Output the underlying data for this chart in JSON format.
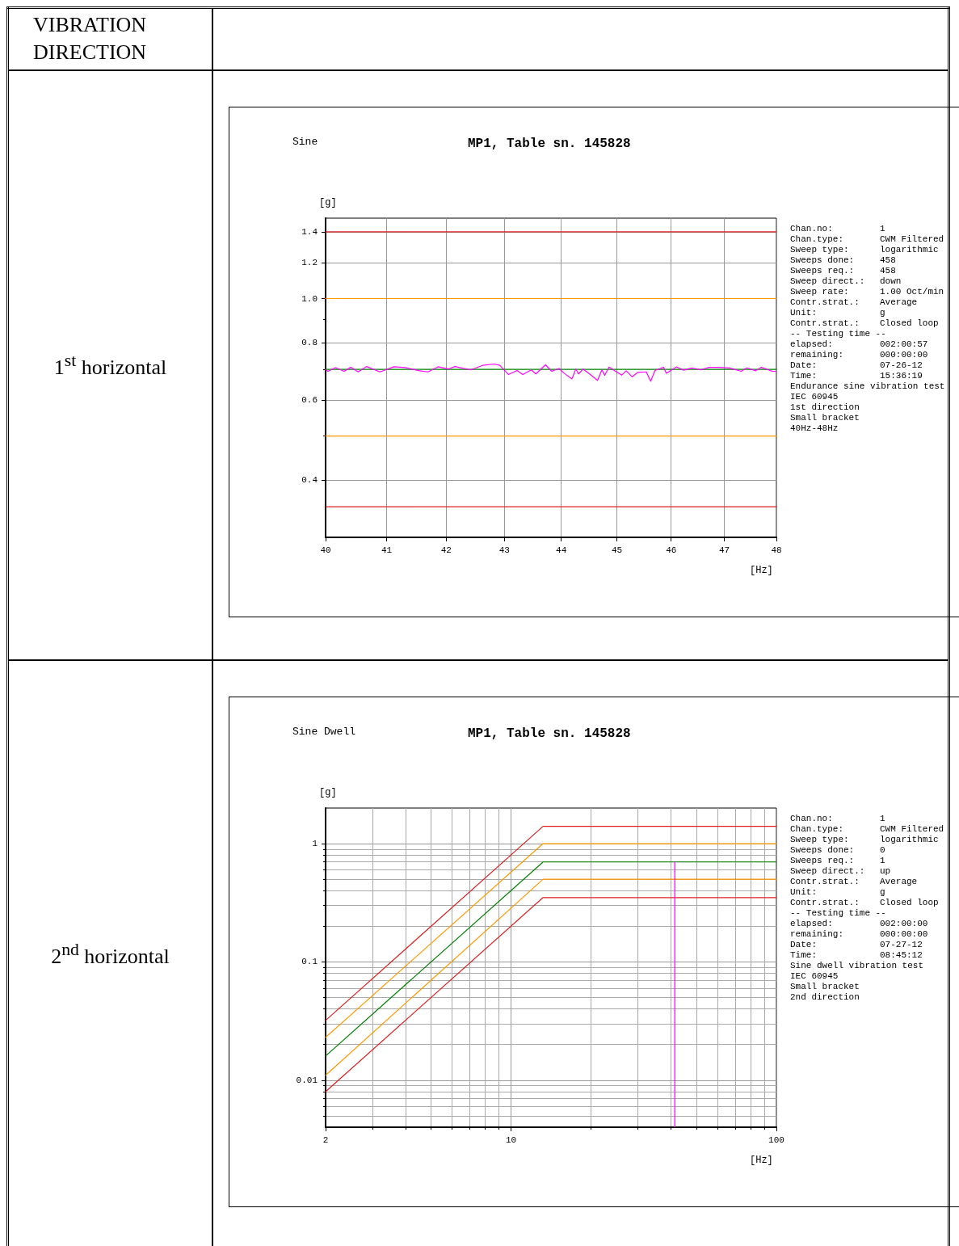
{
  "chart_data": [
    {
      "type": "line",
      "title": "MP1, Table sn. 145828",
      "subtitle": "Sine",
      "xlabel": "[Hz]",
      "ylabel": "[g]",
      "log": "xy",
      "grid": true,
      "xlim": [
        40,
        48
      ],
      "xticks": [
        40,
        41,
        42,
        43,
        44,
        45,
        46,
        47,
        48
      ],
      "ylim": [
        0.3,
        1.5
      ],
      "yticks": [
        0.4,
        0.6,
        0.8,
        {
          "value": 1,
          "label": "1.0"
        },
        1.2,
        1.4
      ],
      "annotations": [
        "1$^{st}$ horizontal",
        "VIBRATION DIRECTION",
        "Chan.no: 1",
        "Chan.type: CWM Filtered",
        "Sweep type: logarithmic",
        "Sweeps done: 458",
        "Sweeps req.: 458",
        "Sweep direct.: down",
        "Sweep rate: 1.00 Oct/min",
        "Contr.strat.: Average",
        "Unit: g",
        "Contr.strat.: Closed loop",
        "-- Testing time --",
        "elapsed: 002:00:57",
        "remaining: 000:00:00",
        "Date: 07-26-12",
        "Time: 15:36:19",
        "Endurance sine vibration test",
        "IEC 60945",
        "1st direction",
        "Small bracket",
        "40Hz-48Hz"
      ],
      "series": [
        {
          "color": "#e02020",
          "x": [
            40,
            48
          ],
          "values": [
            1.4,
            1.4
          ]
        },
        {
          "color": "#ff9900",
          "x": [
            40,
            48
          ],
          "values": [
            1.0,
            1.0
          ]
        },
        {
          "color": "#008000",
          "x": [
            40,
            48
          ],
          "values": [
            0.7,
            0.7
          ]
        },
        {
          "color": "#ff9900",
          "x": [
            40,
            48
          ],
          "values": [
            0.5,
            0.5
          ]
        },
        {
          "color": "#e02020",
          "x": [
            40,
            48
          ],
          "values": [
            0.35,
            0.35
          ]
        },
        {
          "color": "#ff00ff",
          "x": [
            40,
            40.04,
            40.16,
            40.3,
            40.41,
            40.53,
            40.67,
            40.89,
            41.12,
            41.31,
            41.55,
            41.69,
            41.86,
            42.03,
            42.15,
            42.42,
            42.62,
            42.82,
            42.92,
            43.07,
            43.22,
            43.32,
            43.47,
            43.55,
            43.72,
            43.83,
            43.96,
            44.06,
            44.19,
            44.26,
            44.31,
            44.39,
            44.52,
            44.65,
            44.73,
            44.78,
            44.86,
            44.96,
            45.09,
            45.17,
            45.28,
            45.38,
            45.54,
            45.62,
            45.7,
            45.86,
            45.91,
            46.1,
            46.23,
            46.39,
            46.55,
            46.71,
            46.88,
            47.1,
            47.32,
            47.43,
            47.6,
            47.71,
            47.92,
            48
          ],
          "values": [
            0.698,
            0.693,
            0.706,
            0.693,
            0.707,
            0.691,
            0.71,
            0.691,
            0.709,
            0.706,
            0.695,
            0.691,
            0.709,
            0.701,
            0.71,
            0.698,
            0.714,
            0.719,
            0.714,
            0.682,
            0.696,
            0.682,
            0.698,
            0.684,
            0.716,
            0.693,
            0.703,
            0.685,
            0.667,
            0.701,
            0.684,
            0.701,
            0.682,
            0.662,
            0.698,
            0.679,
            0.708,
            0.695,
            0.68,
            0.695,
            0.674,
            0.689,
            0.691,
            0.659,
            0.696,
            0.707,
            0.686,
            0.709,
            0.697,
            0.705,
            0.698,
            0.707,
            0.707,
            0.705,
            0.693,
            0.705,
            0.695,
            0.707,
            0.693,
            0.693
          ]
        }
      ]
    },
    {
      "type": "line",
      "title": "MP1, Table sn. 145828",
      "subtitle": "Sine Dwell",
      "xlabel": "[Hz]",
      "ylabel": "[g]",
      "log": "xy",
      "grid": true,
      "xlim": [
        2,
        100
      ],
      "xticks": [
        2,
        10,
        100
      ],
      "ylim": [
        0.004,
        2
      ],
      "yticks": [
        0.01,
        0.1,
        1
      ],
      "annotations": [
        "2$^{nd}$ horizontal",
        "Chan.no: 1",
        "Chan.type: CWM Filtered",
        "Sweep type: logarithmic",
        "Sweeps done: 0",
        "Sweeps req.: 1",
        "Sweep direct.: up",
        "Contr.strat.: Average",
        "Unit: g",
        "Contr.strat.: Closed loop",
        "-- Testing time --",
        "elapsed: 002:00:00",
        "remaining: 000:00:00",
        "Date: 07-27-12",
        "Time: 08:45:12",
        "Sine dwell vibration test",
        "IEC 60945",
        "Small bracket",
        "2nd direction"
      ],
      "series": [
        {
          "color": "#e02020",
          "x": [
            2,
            13.2,
            100
          ],
          "values": [
            0.032,
            1.4,
            1.4
          ]
        },
        {
          "color": "#ff9900",
          "x": [
            2,
            13.2,
            100
          ],
          "values": [
            0.023,
            1.0,
            1.0
          ]
        },
        {
          "color": "#008000",
          "x": [
            2,
            13.2,
            100
          ],
          "values": [
            0.016,
            0.7,
            0.7
          ]
        },
        {
          "color": "#ff9900",
          "x": [
            2,
            13.2,
            100
          ],
          "values": [
            0.011,
            0.5,
            0.5
          ]
        },
        {
          "color": "#e02020",
          "x": [
            2,
            13.2,
            100
          ],
          "values": [
            0.008,
            0.35,
            0.35
          ]
        },
        {
          "color": "#ff00ff",
          "x": [
            41.4,
            41.4
          ],
          "values": [
            0.004,
            0.7
          ]
        }
      ]
    }
  ]
}
